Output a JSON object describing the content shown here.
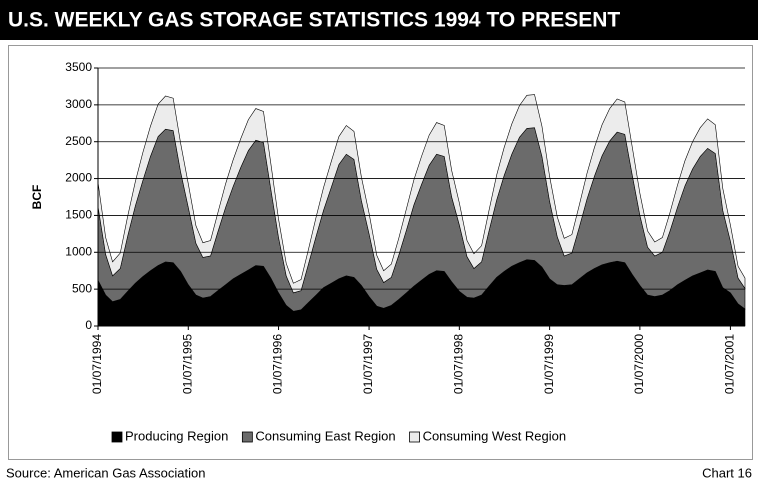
{
  "chart_data": {
    "type": "stacked_area",
    "title": "U.S. WEEKLY GAS STORAGE STATISTICS 1994 TO PRESENT",
    "ylabel": "BCF",
    "source": "Source: American Gas Association",
    "chart_label": "Chart 16",
    "x": [
      "1994-01-07",
      "1994-02-07",
      "1994-03-07",
      "1994-04-07",
      "1994-05-07",
      "1994-06-07",
      "1994-07-07",
      "1994-08-07",
      "1994-09-07",
      "1994-10-07",
      "1994-11-07",
      "1994-12-07",
      "1995-01-07",
      "1995-02-07",
      "1995-03-07",
      "1995-04-07",
      "1995-05-07",
      "1995-06-07",
      "1995-07-07",
      "1995-08-07",
      "1995-09-07",
      "1995-10-07",
      "1995-11-07",
      "1995-12-07",
      "1996-01-07",
      "1996-02-07",
      "1996-03-07",
      "1996-04-07",
      "1996-05-07",
      "1996-06-07",
      "1996-07-07",
      "1996-08-07",
      "1996-09-07",
      "1996-10-07",
      "1996-11-07",
      "1996-12-07",
      "1997-01-07",
      "1997-02-07",
      "1997-03-07",
      "1997-04-07",
      "1997-05-07",
      "1997-06-07",
      "1997-07-07",
      "1997-08-07",
      "1997-09-07",
      "1997-10-07",
      "1997-11-07",
      "1997-12-07",
      "1998-01-07",
      "1998-02-07",
      "1998-03-07",
      "1998-04-07",
      "1998-05-07",
      "1998-06-07",
      "1998-07-07",
      "1998-08-07",
      "1998-09-07",
      "1998-10-07",
      "1998-11-07",
      "1998-12-07",
      "1999-01-07",
      "1999-02-07",
      "1999-03-07",
      "1999-04-07",
      "1999-05-07",
      "1999-06-07",
      "1999-07-07",
      "1999-08-07",
      "1999-09-07",
      "1999-10-07",
      "1999-11-07",
      "1999-12-07",
      "2000-01-07",
      "2000-02-07",
      "2000-03-07",
      "2000-04-07",
      "2000-05-07",
      "2000-06-07",
      "2000-07-07",
      "2000-08-07",
      "2000-09-07",
      "2000-10-07",
      "2000-11-07",
      "2000-12-07",
      "2001-01-07",
      "2001-02-07",
      "2001-03-07"
    ],
    "series": [
      {
        "name": "Producing Region",
        "color": "#000000",
        "values": [
          620,
          420,
          330,
          360,
          470,
          580,
          670,
          750,
          820,
          870,
          860,
          740,
          560,
          420,
          380,
          400,
          480,
          560,
          640,
          700,
          760,
          820,
          810,
          650,
          450,
          280,
          200,
          220,
          320,
          420,
          520,
          580,
          640,
          680,
          660,
          550,
          400,
          270,
          240,
          280,
          360,
          450,
          540,
          620,
          700,
          750,
          740,
          600,
          470,
          390,
          380,
          420,
          540,
          660,
          740,
          810,
          860,
          900,
          890,
          800,
          640,
          560,
          550,
          560,
          640,
          720,
          780,
          830,
          860,
          880,
          860,
          700,
          550,
          420,
          400,
          420,
          480,
          560,
          620,
          680,
          720,
          760,
          740,
          520,
          450,
          300,
          230
        ]
      },
      {
        "name": "Consuming East Region",
        "color": "#6b6b6b",
        "values": [
          1000,
          550,
          350,
          420,
          750,
          1050,
          1300,
          1550,
          1750,
          1800,
          1790,
          1350,
          1050,
          700,
          550,
          550,
          800,
          1050,
          1250,
          1450,
          1620,
          1700,
          1680,
          1200,
          750,
          400,
          250,
          260,
          520,
          800,
          1050,
          1300,
          1550,
          1650,
          1600,
          1150,
          850,
          500,
          350,
          380,
          600,
          850,
          1100,
          1300,
          1480,
          1580,
          1560,
          1150,
          900,
          550,
          400,
          450,
          750,
          1050,
          1300,
          1520,
          1700,
          1780,
          1800,
          1500,
          1050,
          650,
          400,
          430,
          700,
          1000,
          1250,
          1480,
          1650,
          1750,
          1740,
          1350,
          950,
          650,
          550,
          580,
          800,
          1050,
          1280,
          1450,
          1580,
          1650,
          1600,
          1050,
          700,
          350,
          280
        ]
      },
      {
        "name": "Consuming West Region",
        "color": "#ececec",
        "values": [
          330,
          230,
          190,
          210,
          270,
          330,
          380,
          410,
          440,
          450,
          440,
          390,
          320,
          240,
          200,
          210,
          260,
          320,
          360,
          390,
          420,
          430,
          420,
          350,
          250,
          170,
          130,
          150,
          200,
          260,
          310,
          350,
          380,
          390,
          380,
          320,
          280,
          190,
          160,
          180,
          230,
          290,
          340,
          380,
          410,
          430,
          420,
          360,
          300,
          220,
          200,
          220,
          280,
          340,
          380,
          410,
          430,
          450,
          450,
          410,
          340,
          270,
          240,
          250,
          300,
          350,
          390,
          420,
          440,
          450,
          440,
          380,
          300,
          220,
          190,
          200,
          250,
          300,
          340,
          370,
          390,
          400,
          390,
          300,
          220,
          160,
          140
        ]
      }
    ],
    "xlim": [
      "1994-01-07",
      "2001-03-07"
    ],
    "xticks": [
      {
        "value": "1994-01-07",
        "label": "01/07/1994"
      },
      {
        "value": "1995-01-07",
        "label": "01/07/1995"
      },
      {
        "value": "1996-01-07",
        "label": "01/07/1996"
      },
      {
        "value": "1997-01-07",
        "label": "01/07/1997"
      },
      {
        "value": "1998-01-07",
        "label": "01/07/1998"
      },
      {
        "value": "1999-01-07",
        "label": "01/07/1999"
      },
      {
        "value": "2000-01-07",
        "label": "01/07/2000"
      },
      {
        "value": "2001-01-07",
        "label": "01/07/2001"
      }
    ],
    "ylim": [
      0,
      3500
    ],
    "yticks": [
      0,
      500,
      1000,
      1500,
      2000,
      2500,
      3000,
      3500
    ],
    "grid": true,
    "legend": "bottom"
  }
}
